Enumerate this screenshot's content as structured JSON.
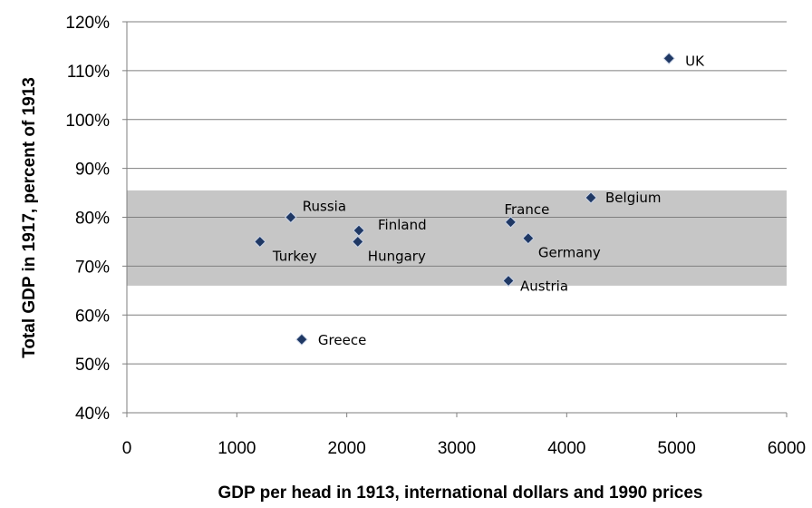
{
  "chart_data": {
    "type": "scatter",
    "title": "",
    "xlabel": "GDP per head in 1913, international dollars and 1990 prices",
    "ylabel": "Total GDP in 1917, percent of 1913",
    "xlim": [
      0,
      6000
    ],
    "ylim": [
      40,
      120
    ],
    "x_ticks": [
      0,
      1000,
      2000,
      3000,
      4000,
      5000,
      6000
    ],
    "x_tick_labels": [
      "0",
      "1000",
      "2000",
      "3000",
      "4000",
      "5000",
      "6000"
    ],
    "y_ticks": [
      40,
      50,
      60,
      70,
      80,
      90,
      100,
      110,
      120
    ],
    "y_tick_labels": [
      "40%",
      "50%",
      "60%",
      "70%",
      "80%",
      "90%",
      "100%",
      "110%",
      "120%"
    ],
    "grid": "horizontal",
    "legend": "none",
    "shaded_band": {
      "y_from": 66,
      "y_to": 85.5,
      "color": "#c6c6c6"
    },
    "marker": {
      "shape": "diamond",
      "fill": "#1f3864",
      "stroke": "#c9d3e6"
    },
    "points": [
      {
        "label": "UK",
        "x": 4930,
        "y": 112.5
      },
      {
        "label": "Belgium",
        "x": 4220,
        "y": 84
      },
      {
        "label": "Russia",
        "x": 1490,
        "y": 80
      },
      {
        "label": "France",
        "x": 3490,
        "y": 79
      },
      {
        "label": "Finland",
        "x": 2110,
        "y": 77.3
      },
      {
        "label": "Germany",
        "x": 3650,
        "y": 75.7
      },
      {
        "label": "Turkey",
        "x": 1210,
        "y": 75
      },
      {
        "label": "Hungary",
        "x": 2100,
        "y": 75
      },
      {
        "label": "Austria",
        "x": 3470,
        "y": 67
      },
      {
        "label": "Greece",
        "x": 1590,
        "y": 55
      }
    ]
  }
}
